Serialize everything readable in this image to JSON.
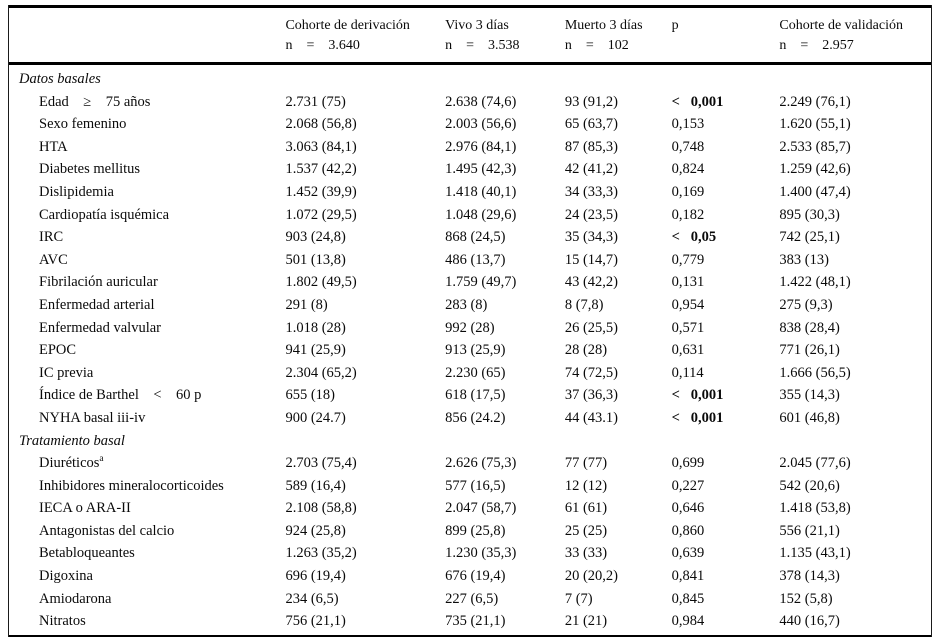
{
  "page": {
    "background_color": "#ffffff",
    "text_color": "#0a0a0a",
    "rule_color": "#000000"
  },
  "table": {
    "header": {
      "columns": [
        {
          "label": "",
          "sub": ""
        },
        {
          "label": "Cohorte de derivación",
          "sub": "n    =    3.640"
        },
        {
          "label": "Vivo 3 días",
          "sub": "n    =    3.538"
        },
        {
          "label": "Muerto 3 días",
          "sub": "n    =    102"
        },
        {
          "label": "p",
          "sub": ""
        },
        {
          "label": "Cohorte de validación",
          "sub": "n    =    2.957"
        }
      ]
    },
    "sections": [
      {
        "title": "Datos basales",
        "rows": [
          {
            "label": "Edad    ≥    75 años",
            "sup": "",
            "values": [
              "2.731 (75)",
              "2.638 (74,6)",
              "93 (91,2)",
              "<   0,001",
              "2.249 (76,1)"
            ],
            "p_bold": true
          },
          {
            "label": "Sexo femenino",
            "sup": "",
            "values": [
              "2.068 (56,8)",
              "2.003 (56,6)",
              "65 (63,7)",
              "0,153",
              "1.620 (55,1)"
            ],
            "p_bold": false
          },
          {
            "label": "HTA",
            "sup": "",
            "values": [
              "3.063 (84,1)",
              "2.976 (84,1)",
              "87 (85,3)",
              "0,748",
              "2.533 (85,7)"
            ],
            "p_bold": false
          },
          {
            "label": "Diabetes mellitus",
            "sup": "",
            "values": [
              "1.537 (42,2)",
              "1.495 (42,3)",
              "42 (41,2)",
              "0,824",
              "1.259 (42,6)"
            ],
            "p_bold": false
          },
          {
            "label": "Dislipidemia",
            "sup": "",
            "values": [
              "1.452 (39,9)",
              "1.418 (40,1)",
              "34 (33,3)",
              "0,169",
              "1.400 (47,4)"
            ],
            "p_bold": false
          },
          {
            "label": "Cardiopatía isquémica",
            "sup": "",
            "values": [
              "1.072 (29,5)",
              "1.048 (29,6)",
              "24 (23,5)",
              "0,182",
              "895 (30,3)"
            ],
            "p_bold": false
          },
          {
            "label": "IRC",
            "sup": "",
            "values": [
              "903 (24,8)",
              "868 (24,5)",
              "35 (34,3)",
              "<   0,05",
              "742 (25,1)"
            ],
            "p_bold": true
          },
          {
            "label": "AVC",
            "sup": "",
            "values": [
              "501 (13,8)",
              "486 (13,7)",
              "15 (14,7)",
              "0,779",
              "383 (13)"
            ],
            "p_bold": false
          },
          {
            "label": "Fibrilación auricular",
            "sup": "",
            "values": [
              "1.802 (49,5)",
              "1.759 (49,7)",
              "43 (42,2)",
              "0,131",
              "1.422 (48,1)"
            ],
            "p_bold": false
          },
          {
            "label": "Enfermedad arterial",
            "sup": "",
            "values": [
              "291 (8)",
              "283 (8)",
              "8 (7,8)",
              "0,954",
              "275 (9,3)"
            ],
            "p_bold": false
          },
          {
            "label": "Enfermedad valvular",
            "sup": "",
            "values": [
              "1.018 (28)",
              "992 (28)",
              "26 (25,5)",
              "0,571",
              "838 (28,4)"
            ],
            "p_bold": false
          },
          {
            "label": "EPOC",
            "sup": "",
            "values": [
              "941 (25,9)",
              "913 (25,9)",
              "28 (28)",
              "0,631",
              "771 (26,1)"
            ],
            "p_bold": false
          },
          {
            "label": "IC previa",
            "sup": "",
            "values": [
              "2.304 (65,2)",
              "2.230 (65)",
              "74 (72,5)",
              "0,114",
              "1.666 (56,5)"
            ],
            "p_bold": false
          },
          {
            "label": "Índice de Barthel    <    60 p",
            "sup": "",
            "values": [
              "655 (18)",
              "618 (17,5)",
              "37 (36,3)",
              "<   0,001",
              "355 (14,3)"
            ],
            "p_bold": true
          },
          {
            "label": "NYHA basal iii-iv",
            "sup": "",
            "values": [
              "900 (24.7)",
              "856 (24.2)",
              "44 (43.1)",
              "<   0,001",
              "601 (46,8)"
            ],
            "p_bold": true
          }
        ]
      },
      {
        "title": "Tratamiento basal",
        "rows": [
          {
            "label": "Diuréticos",
            "sup": "a",
            "values": [
              "2.703 (75,4)",
              "2.626 (75,3)",
              "77 (77)",
              "0,699",
              "2.045 (77,6)"
            ],
            "p_bold": false
          },
          {
            "label": "Inhibidores mineralocorticoides",
            "sup": "",
            "values": [
              "589 (16,4)",
              "577 (16,5)",
              "12 (12)",
              "0,227",
              "542 (20,6)"
            ],
            "p_bold": false
          },
          {
            "label": "IECA o ARA-II",
            "sup": "",
            "values": [
              "2.108 (58,8)",
              "2.047 (58,7)",
              "61 (61)",
              "0,646",
              "1.418 (53,8)"
            ],
            "p_bold": false
          },
          {
            "label": "Antagonistas del calcio",
            "sup": "",
            "values": [
              "924 (25,8)",
              "899 (25,8)",
              "25 (25)",
              "0,860",
              "556 (21,1)"
            ],
            "p_bold": false
          },
          {
            "label": "Betabloqueantes",
            "sup": "",
            "values": [
              "1.263 (35,2)",
              "1.230 (35,3)",
              "33 (33)",
              "0,639",
              "1.135 (43,1)"
            ],
            "p_bold": false
          },
          {
            "label": "Digoxina",
            "sup": "",
            "values": [
              "696 (19,4)",
              "676 (19,4)",
              "20 (20,2)",
              "0,841",
              "378 (14,3)"
            ],
            "p_bold": false
          },
          {
            "label": "Amiodarona",
            "sup": "",
            "values": [
              "234 (6,5)",
              "227 (6,5)",
              "7 (7)",
              "0,845",
              "152 (5,8)"
            ],
            "p_bold": false
          },
          {
            "label": "Nitratos",
            "sup": "",
            "values": [
              "756 (21,1)",
              "735 (21,1)",
              "21 (21)",
              "0,984",
              "440 (16,7)"
            ],
            "p_bold": false
          }
        ]
      }
    ]
  }
}
